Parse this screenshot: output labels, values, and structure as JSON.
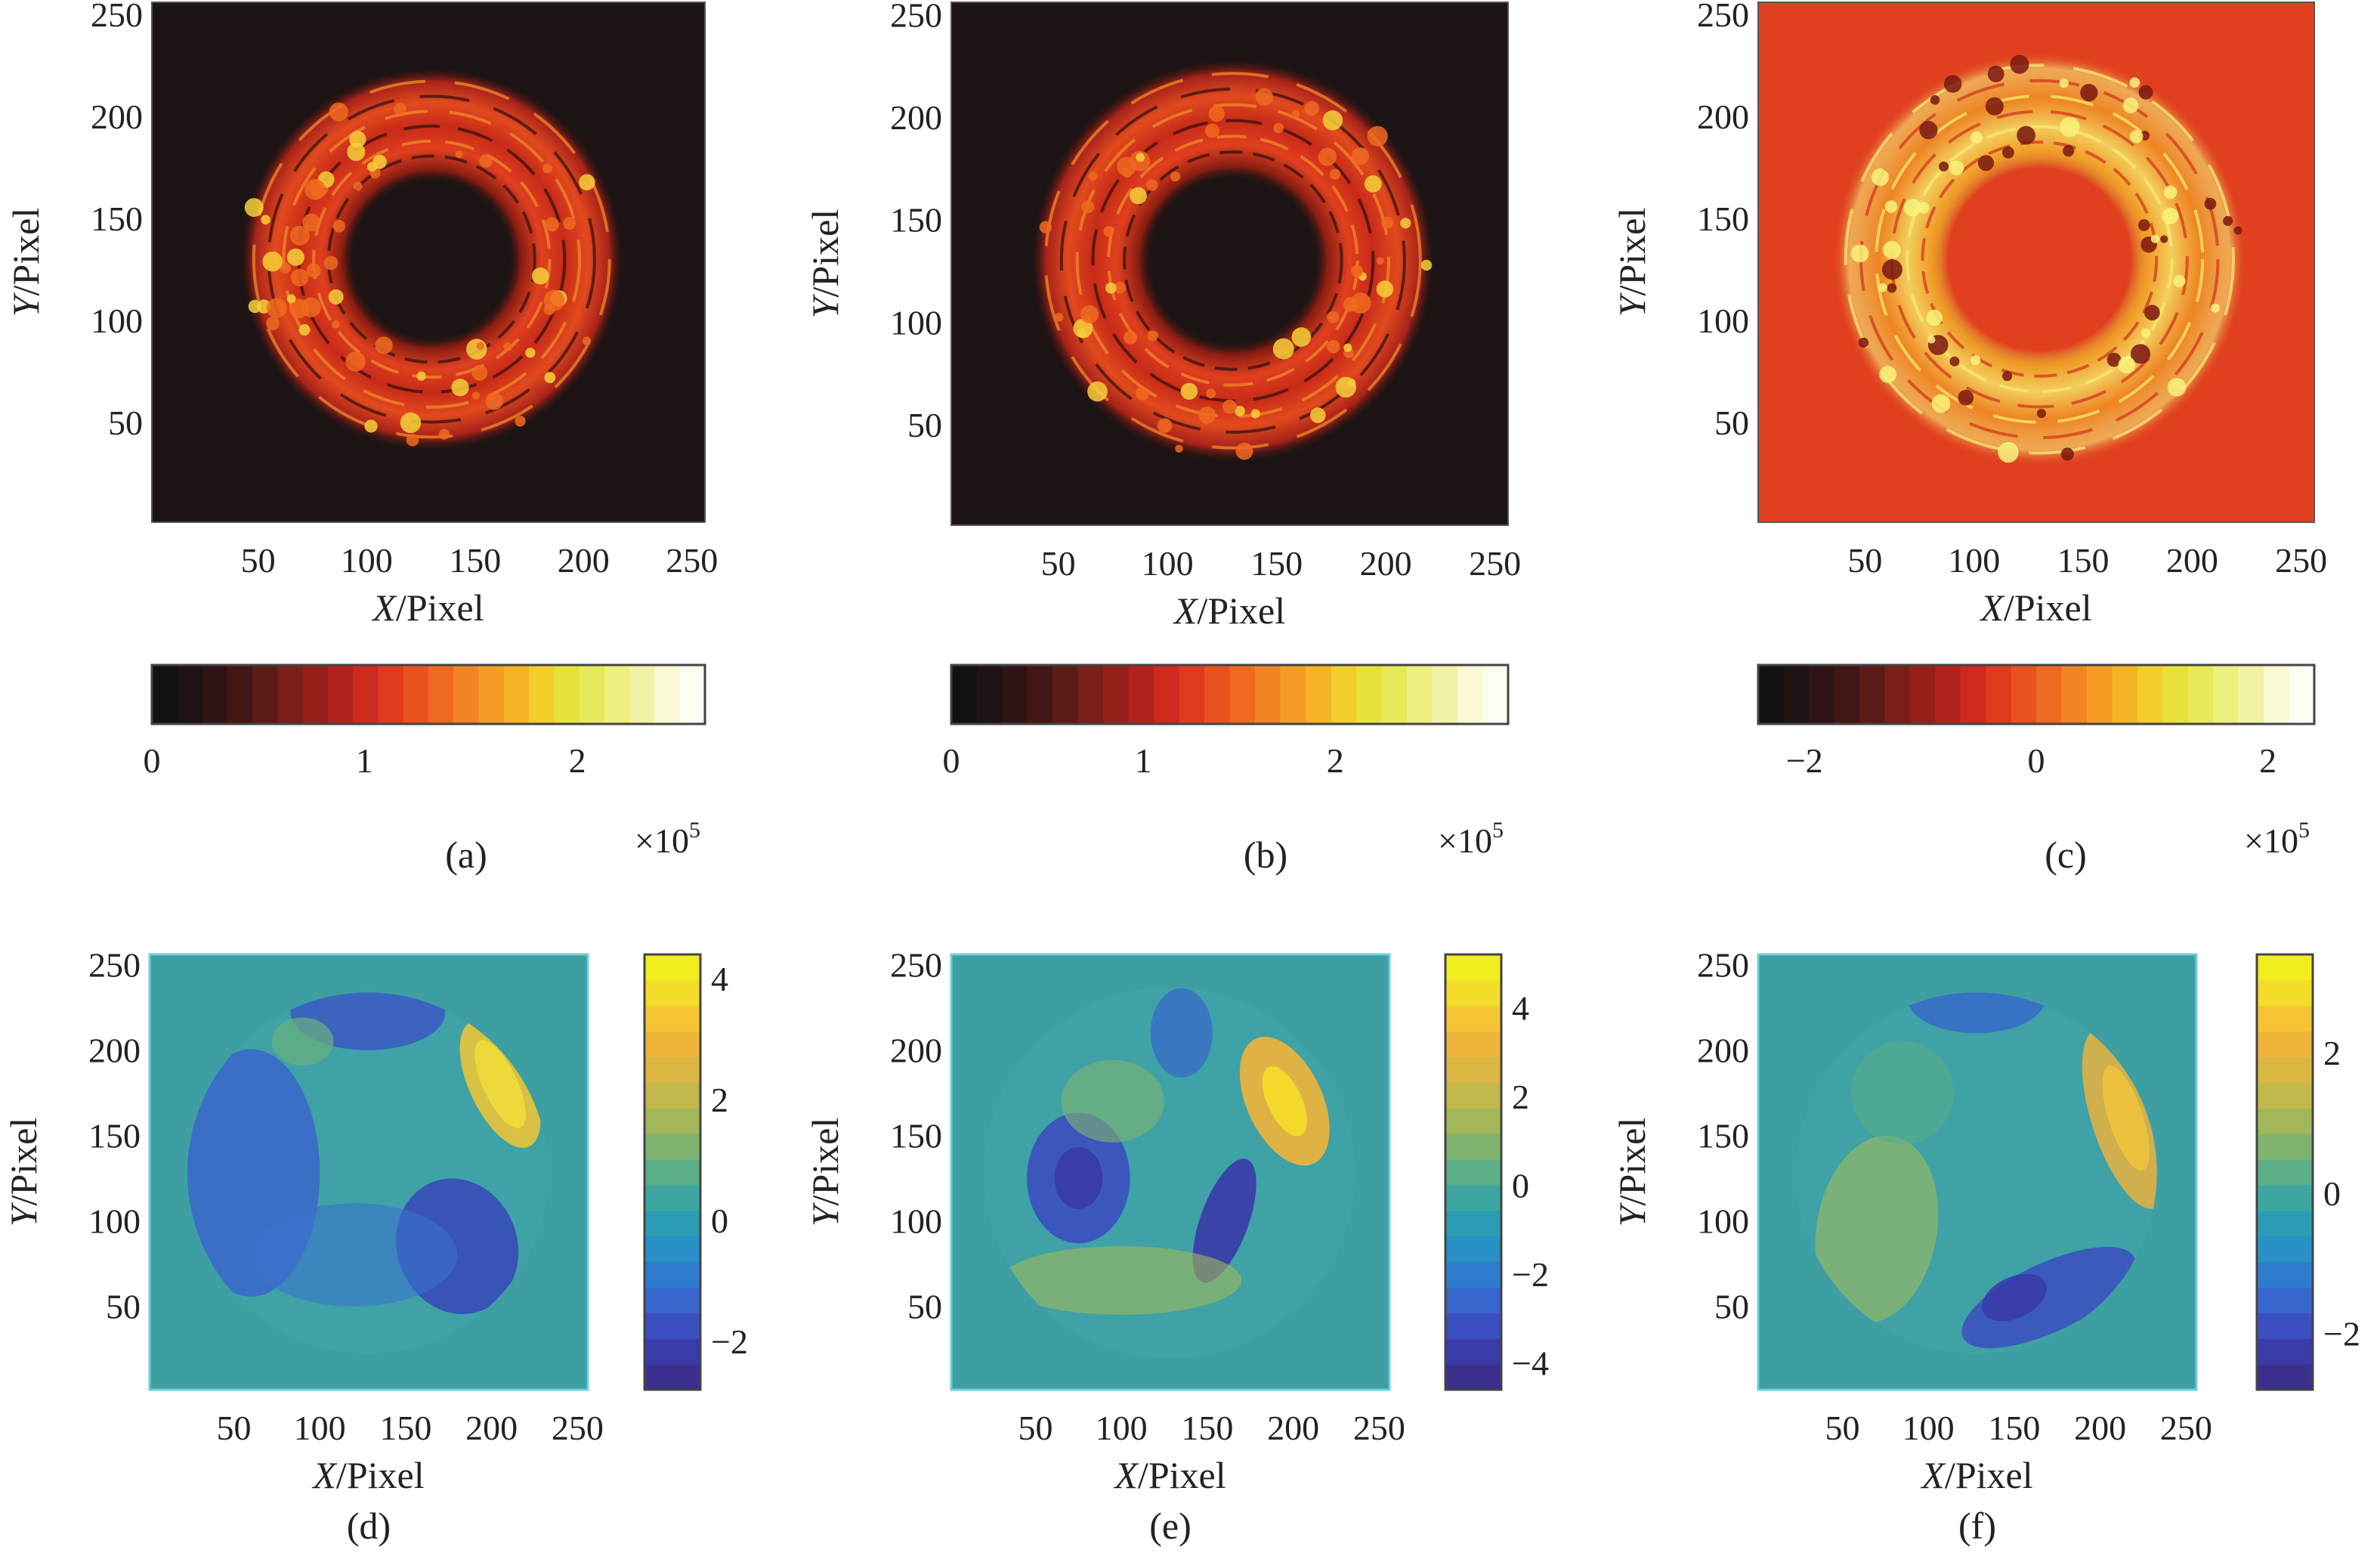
{
  "chart_data": [
    {
      "id": "a",
      "type": "heatmap",
      "caption": "(a)",
      "colormap": "hot",
      "xlabel": "X/Pixel",
      "ylabel": "Y/Pixel",
      "xlim": [
        1,
        256
      ],
      "ylim": [
        1,
        256
      ],
      "xticks": [
        50,
        100,
        150,
        200,
        250
      ],
      "yticks": [
        50,
        100,
        150,
        200,
        250
      ],
      "background": "#1c1414",
      "colorbar": {
        "orientation": "horizontal",
        "range": [
          0,
          2.6
        ],
        "ticks": [
          0,
          1,
          2
        ],
        "tick_labels": [
          "0",
          "1",
          "2"
        ],
        "multiplier": "×10",
        "exponent": "5"
      },
      "ring": {
        "center": [
          130,
          130
        ],
        "inner_radius": 42,
        "outer_radius": 88
      }
    },
    {
      "id": "b",
      "type": "heatmap",
      "caption": "(b)",
      "colormap": "hot",
      "xlabel": "X/Pixel",
      "ylabel": "Y/Pixel",
      "xlim": [
        1,
        256
      ],
      "ylim": [
        1,
        256
      ],
      "xticks": [
        50,
        100,
        150,
        200,
        250
      ],
      "yticks": [
        50,
        100,
        150,
        200,
        250
      ],
      "background": "#1c1414",
      "colorbar": {
        "orientation": "horizontal",
        "range": [
          0,
          2.9
        ],
        "ticks": [
          0,
          1,
          2
        ],
        "tick_labels": [
          "0",
          "1",
          "2"
        ],
        "multiplier": "×10",
        "exponent": "5"
      },
      "ring": {
        "center": [
          130,
          130
        ],
        "inner_radius": 44,
        "outer_radius": 92
      }
    },
    {
      "id": "c",
      "type": "heatmap",
      "caption": "(c)",
      "colormap": "hot",
      "xlabel": "X/Pixel",
      "ylabel": "Y/Pixel",
      "xlim": [
        1,
        256
      ],
      "ylim": [
        1,
        256
      ],
      "xticks": [
        50,
        100,
        150,
        200,
        250
      ],
      "yticks": [
        50,
        100,
        150,
        200,
        250
      ],
      "background": "#e0401f",
      "colorbar": {
        "orientation": "horizontal",
        "range": [
          -2.4,
          2.4
        ],
        "ticks": [
          -2,
          0,
          2
        ],
        "tick_labels": [
          "−2",
          "0",
          "2"
        ],
        "multiplier": "×10",
        "exponent": "5"
      },
      "ring": {
        "center": [
          130,
          130
        ],
        "inner_radius": 48,
        "outer_radius": 95
      }
    },
    {
      "id": "d",
      "type": "heatmap",
      "caption": "(d)",
      "colormap": "parula",
      "xlabel": "X/Pixel",
      "ylabel": "Y/Pixel",
      "xlim": [
        1,
        256
      ],
      "ylim": [
        1,
        256
      ],
      "xticks": [
        50,
        100,
        150,
        200,
        250
      ],
      "yticks": [
        50,
        100,
        150,
        200,
        250
      ],
      "background": "#3e9fa3",
      "colorbar": {
        "orientation": "vertical",
        "range": [
          -2.8,
          4.4
        ],
        "ticks": [
          -2,
          0,
          2,
          4
        ],
        "tick_labels": [
          "−2",
          "0",
          "2",
          "4"
        ]
      },
      "disk": {
        "center": [
          128,
          128
        ],
        "radius": 105
      }
    },
    {
      "id": "e",
      "type": "heatmap",
      "caption": "(e)",
      "colormap": "parula",
      "xlabel": "X/Pixel",
      "ylabel": "Y/Pixel",
      "xlim": [
        1,
        256
      ],
      "ylim": [
        1,
        256
      ],
      "xticks": [
        50,
        100,
        150,
        200,
        250
      ],
      "yticks": [
        50,
        100,
        150,
        200,
        250
      ],
      "background": "#3e9fa3",
      "colorbar": {
        "orientation": "vertical",
        "range": [
          -4.6,
          5.2
        ],
        "ticks": [
          -4,
          -2,
          0,
          2,
          4
        ],
        "tick_labels": [
          "−4",
          "−2",
          "0",
          "2",
          "4"
        ]
      },
      "disk": {
        "center": [
          128,
          128
        ],
        "radius": 108
      }
    },
    {
      "id": "f",
      "type": "heatmap",
      "caption": "(f)",
      "colormap": "parula",
      "xlabel": "X/Pixel",
      "ylabel": "Y/Pixel",
      "xlim": [
        1,
        256
      ],
      "ylim": [
        1,
        256
      ],
      "xticks": [
        50,
        100,
        150,
        200,
        250
      ],
      "yticks": [
        50,
        100,
        150,
        200,
        250
      ],
      "background": "#3e9fa3",
      "colorbar": {
        "orientation": "vertical",
        "range": [
          -2.8,
          3.4
        ],
        "ticks": [
          -2,
          0,
          2
        ],
        "tick_labels": [
          "−2",
          "0",
          "2"
        ]
      },
      "disk": {
        "center": [
          128,
          128
        ],
        "radius": 105
      }
    }
  ]
}
